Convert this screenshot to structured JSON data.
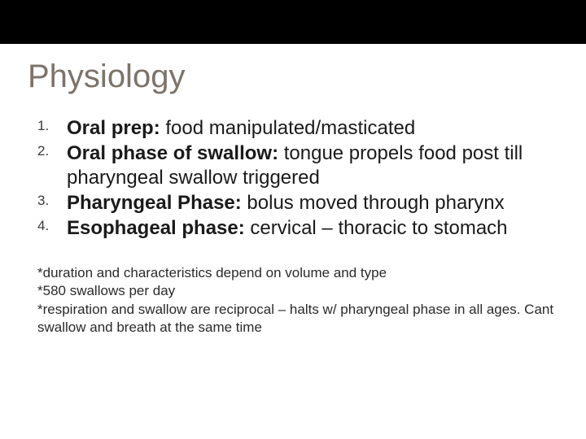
{
  "title_color": "#7c736b",
  "topbar_color": "#000000",
  "background_color": "#ffffff",
  "text_color": "#1a1a1a",
  "title": "Physiology",
  "title_fontsize": 40,
  "list_fontsize": 24,
  "notes_fontsize": 17,
  "items": [
    {
      "bold": "Oral prep:",
      "rest": " food manipulated/masticated"
    },
    {
      "bold": "Oral phase of swallow:",
      "rest": " tongue propels food post till pharyngeal swallow triggered"
    },
    {
      "bold": "Pharyngeal Phase:",
      "rest": " bolus moved through pharynx"
    },
    {
      "bold": "Esophageal phase:",
      "rest": " cervical – thoracic to stomach"
    }
  ],
  "notes": [
    "*duration and characteristics depend on volume and type",
    "*580 swallows per day",
    "*respiration and swallow are reciprocal – halts w/ pharyngeal phase in all ages. Cant swallow and breath at the same time"
  ]
}
